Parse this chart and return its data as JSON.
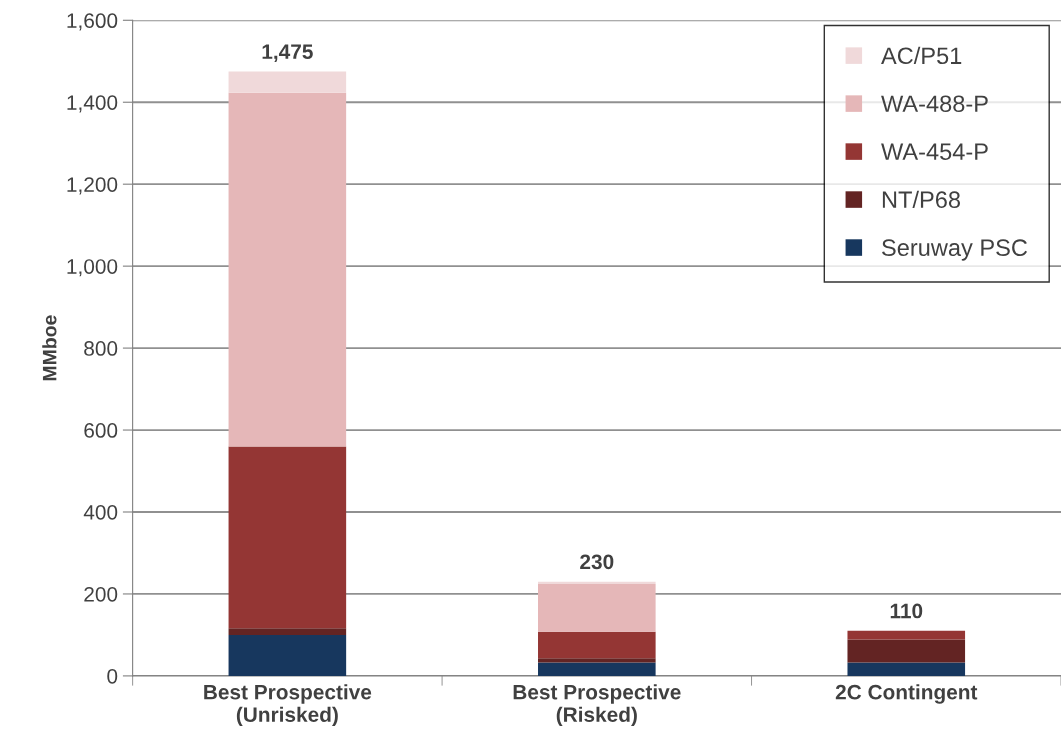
{
  "chart_data": {
    "type": "bar",
    "stacked": true,
    "ylabel": "MMboe",
    "categories": [
      "Best Prospective\n(Unrisked)",
      "Best Prospective\n(Risked)",
      "2C Contingent"
    ],
    "series": [
      {
        "name": "Seruway PSC",
        "color": "#17375e",
        "values": [
          100,
          33,
          33
        ]
      },
      {
        "name": "NT/P68",
        "color": "#632423",
        "values": [
          16,
          10,
          56
        ]
      },
      {
        "name": "WA-454-P",
        "color": "#943634",
        "values": [
          444,
          65,
          21
        ]
      },
      {
        "name": "WA-488-P",
        "color": "#e5b7b8",
        "values": [
          863,
          116,
          0
        ]
      },
      {
        "name": "AC/P51",
        "color": "#f0d9da",
        "values": [
          52,
          6,
          0
        ]
      }
    ],
    "totals": [
      "1,475",
      "230",
      "110"
    ],
    "ylim": [
      0,
      1600
    ],
    "yticks": [
      {
        "value": 0,
        "label": "0"
      },
      {
        "value": 200,
        "label": "200"
      },
      {
        "value": 400,
        "label": "400"
      },
      {
        "value": 600,
        "label": "600"
      },
      {
        "value": 800,
        "label": "800"
      },
      {
        "value": 1000,
        "label": "1,000"
      },
      {
        "value": 1200,
        "label": "1,200"
      },
      {
        "value": 1400,
        "label": "1,400"
      },
      {
        "value": 1600,
        "label": "1,600"
      }
    ],
    "grid": "y",
    "legend": "top right"
  }
}
